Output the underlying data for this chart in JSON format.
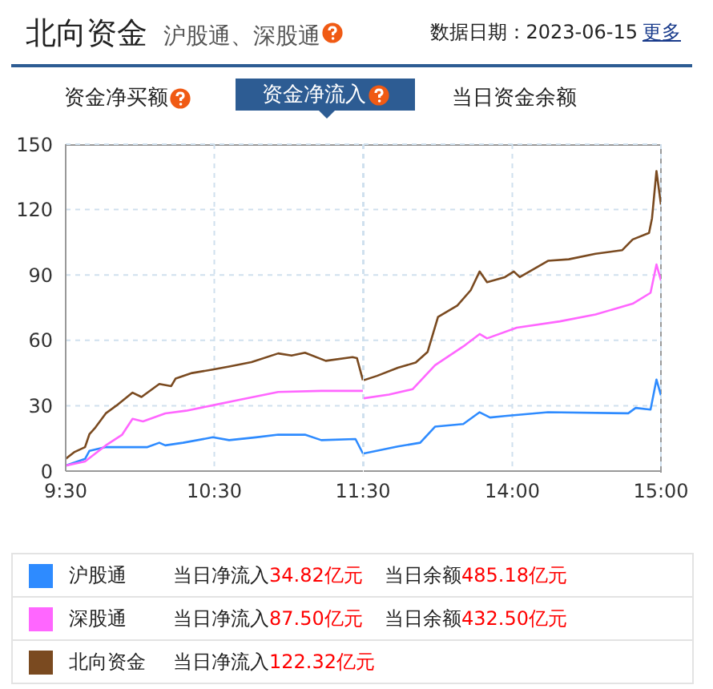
{
  "chart_data": [
    {
      "type": "line",
      "title": "北向资金",
      "subtitle": "沪股通、深股通",
      "annotations": [
        "数据日期：2023-06-15",
        "更多",
        "资金净买额",
        "资金净流入",
        "当日资金余额",
        "当日净流入34.82亿元",
        "当日余额485.18亿元",
        "当日净流入87.50亿元",
        "当日余额432.50亿元",
        "当日净流入122.32亿元"
      ],
      "xlim": [
        9.5,
        11.5
      ],
      "xticks": [
        {
          "value": 9.5,
          "label": "9:30"
        },
        {
          "value": 10.5,
          "label": "10:30"
        },
        {
          "value": 11.5,
          "label": "11:30"
        }
      ],
      "ylim": [
        0,
        150
      ],
      "yticks": [
        0,
        30,
        60,
        90,
        120,
        150
      ],
      "grid": true,
      "legend": "bottom",
      "marker": "none",
      "line_style": "solid",
      "series": [
        {
          "name": "沪股通",
          "color": "#2e8bff",
          "x": [
            9.5,
            9.63,
            9.66,
            9.77,
            10.05,
            10.13,
            10.17,
            10.29,
            10.49,
            10.6,
            10.78,
            10.93,
            11.11,
            11.22,
            11.45,
            11.5
          ],
          "values": [
            2.5,
            5.6,
            9.3,
            11,
            11,
            13,
            11.8,
            13,
            15.5,
            14.2,
            15.5,
            16.7,
            16.7,
            14.2,
            14.7,
            8.1
          ]
        },
        {
          "name": "深股通",
          "color": "#ff66ff",
          "x": [
            9.5,
            9.63,
            9.77,
            9.88,
            9.95,
            10.02,
            10.17,
            10.31,
            10.49,
            10.67,
            10.93,
            11.22,
            11.45,
            11.5
          ],
          "values": [
            2.5,
            4.4,
            11.8,
            16.7,
            24,
            22.8,
            26.5,
            27.7,
            30.2,
            32.7,
            36.3,
            36.8,
            36.8,
            36.8
          ]
        },
        {
          "name": "北向资金",
          "color": "#7a4a20",
          "x": [
            9.5,
            9.56,
            9.63,
            9.66,
            9.7,
            9.77,
            9.84,
            9.95,
            10.01,
            10.13,
            10.21,
            10.24,
            10.35,
            10.49,
            10.6,
            10.75,
            10.93,
            11.02,
            11.11,
            11.25,
            11.43,
            11.46,
            11.5
          ],
          "values": [
            5.6,
            8.8,
            11,
            17,
            20,
            26.5,
            30,
            36,
            34,
            40,
            39,
            42.5,
            45,
            46.6,
            48,
            50,
            54,
            53,
            54.3,
            50.6,
            52.3,
            51.8,
            41.7
          ]
        }
      ]
    },
    {
      "type": "line",
      "xlim": [
        13,
        15
      ],
      "xticks": [
        {
          "value": 14,
          "label": "14:00"
        },
        {
          "value": 15,
          "label": "15:00"
        }
      ],
      "ylim": [
        0,
        150
      ],
      "yticks": [
        0,
        30,
        60,
        90,
        120,
        150
      ],
      "tick_labels": "x",
      "grid": true,
      "marker": "none",
      "line_style": "solid",
      "series": [
        {
          "color": "#2e8bff",
          "x": [
            13.0,
            13.23,
            13.38,
            13.48,
            13.67,
            13.78,
            13.85,
            13.95,
            14.24,
            14.78,
            14.83,
            14.93,
            14.97,
            15
          ],
          "values": [
            8.1,
            11.3,
            13,
            20.4,
            21.6,
            27,
            24.6,
            25.3,
            27,
            26.5,
            29,
            28.2,
            42,
            34.8
          ]
        },
        {
          "color": "#ff66ff",
          "x": [
            13.0,
            13.17,
            13.33,
            13.48,
            13.67,
            13.78,
            13.83,
            14.03,
            14.32,
            14.56,
            14.81,
            14.93,
            14.97,
            15
          ],
          "values": [
            33.4,
            35.1,
            37.6,
            48.6,
            57.2,
            62.9,
            60.9,
            65.8,
            68.7,
            71.9,
            76.8,
            81.8,
            94.8,
            87.5
          ]
        },
        {
          "color": "#7a4a20",
          "x": [
            13.0,
            13.09,
            13.23,
            13.35,
            13.43,
            13.5,
            13.63,
            13.72,
            13.78,
            13.83,
            13.95,
            14.01,
            14.05,
            14.24,
            14.38,
            14.56,
            14.74,
            14.81,
            14.92,
            14.94,
            14.97,
            15
          ],
          "values": [
            41.7,
            43.7,
            47.4,
            49.8,
            54.7,
            70.7,
            76,
            83,
            91.6,
            86.7,
            89,
            91.6,
            89,
            96.5,
            97.2,
            99.7,
            101.4,
            106.3,
            109.3,
            116,
            137.7,
            122.3
          ]
        }
      ]
    }
  ]
}
